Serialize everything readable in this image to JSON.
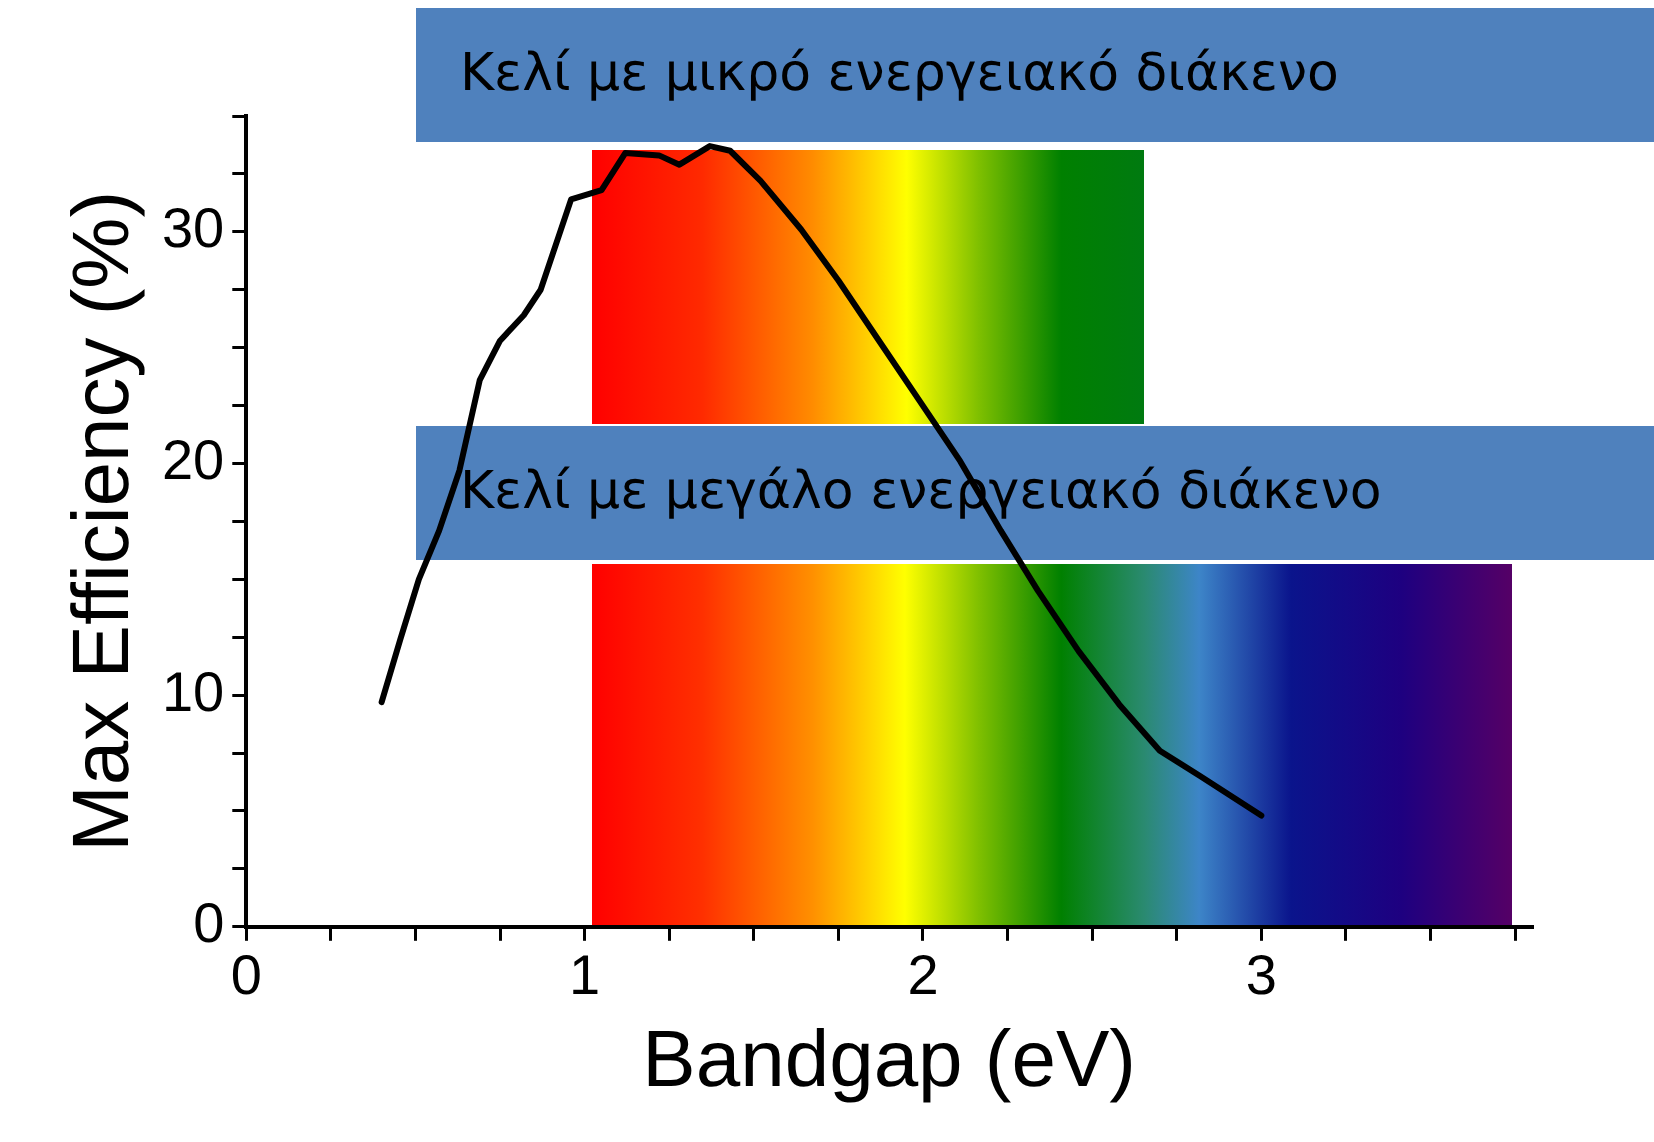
{
  "chart_data": {
    "type": "line",
    "xlabel": "Bandgap (eV)",
    "ylabel": "Max Efficiency (%)",
    "annotations": [
      "Κελί με μικρό ενεργειακό διάκενο",
      "Κελί με μεγάλο ενεργειακό διάκενο"
    ],
    "xlim": [
      0,
      3.8
    ],
    "ylim": [
      0,
      35
    ],
    "xticks": [
      0,
      {
        "value": 0.25,
        "label": null
      },
      {
        "value": 0.5,
        "label": null
      },
      {
        "value": 0.75,
        "label": null
      },
      1,
      {
        "value": 1.25,
        "label": null
      },
      {
        "value": 1.5,
        "label": null
      },
      {
        "value": 1.75,
        "label": null
      },
      2,
      {
        "value": 2.25,
        "label": null
      },
      {
        "value": 2.5,
        "label": null
      },
      {
        "value": 2.75,
        "label": null
      },
      3,
      {
        "value": 3.25,
        "label": null
      },
      {
        "value": 3.5,
        "label": null
      },
      {
        "value": 3.75,
        "label": null
      }
    ],
    "yticks": [
      0,
      {
        "value": 2.5,
        "label": null
      },
      {
        "value": 5,
        "label": null
      },
      {
        "value": 7.5,
        "label": null
      },
      10,
      {
        "value": 12.5,
        "label": null
      },
      {
        "value": 15,
        "label": null
      },
      {
        "value": 17.5,
        "label": null
      },
      20,
      {
        "value": 22.5,
        "label": null
      },
      {
        "value": 25,
        "label": null
      },
      {
        "value": 27.5,
        "label": null
      },
      30,
      {
        "value": 32.5,
        "label": null
      },
      {
        "value": 35,
        "label": null
      }
    ],
    "grid": false,
    "legend": false,
    "marker": "none",
    "line_style": "solid",
    "series": [
      {
        "color": "#000000",
        "x": [
          0.4,
          0.455,
          0.51,
          0.57,
          0.63,
          0.69,
          0.75,
          0.82,
          0.87,
          0.96,
          1.05,
          1.12,
          1.22,
          1.28,
          1.37,
          1.43,
          1.52,
          1.64,
          1.75,
          1.87,
          1.99,
          2.11,
          2.23,
          2.34,
          2.46,
          2.58,
          2.7,
          2.82,
          3.0
        ],
        "values": [
          9.7,
          12.4,
          15.0,
          17.1,
          19.7,
          23.6,
          25.3,
          26.4,
          27.5,
          31.4,
          31.8,
          33.4,
          33.3,
          32.9,
          33.7,
          33.5,
          32.2,
          30.1,
          27.9,
          25.3,
          22.7,
          20.1,
          17.1,
          14.5,
          11.9,
          9.6,
          7.6,
          6.5,
          4.8
        ]
      }
    ]
  }
}
